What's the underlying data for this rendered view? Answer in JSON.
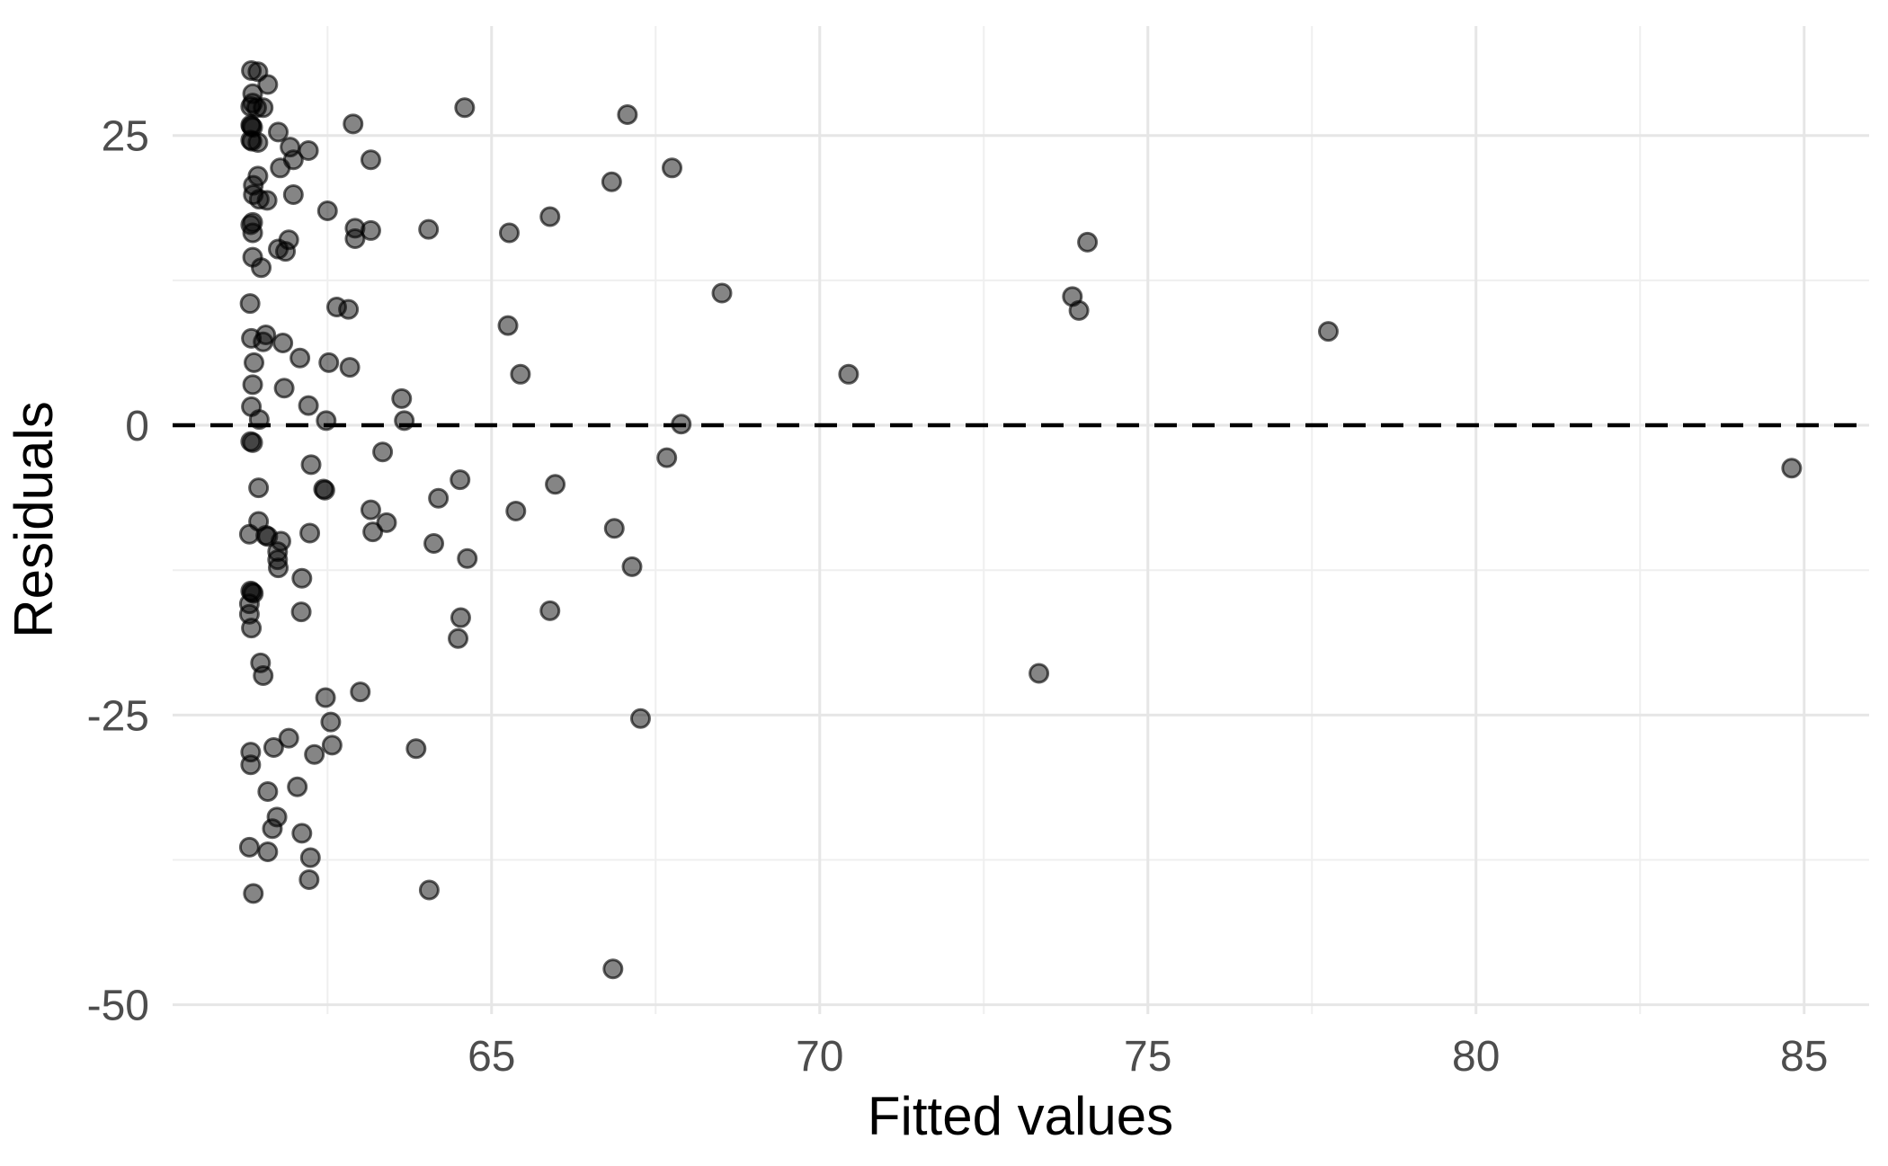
{
  "chart_data": {
    "type": "scatter",
    "title": "",
    "xlabel": "Fitted values",
    "ylabel": "Residuals",
    "x_ticks": [
      65,
      70,
      75,
      80,
      85
    ],
    "x_tick_labels": [
      "65",
      "70",
      "75",
      "80",
      "85"
    ],
    "x_minor_ticks": [
      62.5,
      67.5,
      72.5,
      77.5,
      82.5
    ],
    "y_ticks": [
      25,
      0,
      -25,
      -50
    ],
    "y_tick_labels": [
      "25",
      "0",
      "-25",
      "-50"
    ],
    "y_minor_ticks": [
      12.5,
      -12.5,
      -37.5
    ],
    "xlim": [
      60.14,
      85.99
    ],
    "ylim": [
      -50.8,
      34.44
    ],
    "grid": {
      "major": true,
      "minor": true
    },
    "legend_position": "none",
    "zero_line": {
      "y": 0,
      "style": "dashed",
      "dash": [
        25,
        17
      ]
    },
    "points": [
      [
        61.34,
        30.6
      ],
      [
        61.44,
        30.5
      ],
      [
        61.59,
        29.4
      ],
      [
        61.36,
        28.6
      ],
      [
        61.36,
        27.8
      ],
      [
        61.33,
        27.5
      ],
      [
        61.42,
        27.4
      ],
      [
        61.52,
        27.4
      ],
      [
        61.33,
        25.9
      ],
      [
        61.34,
        25.8
      ],
      [
        61.36,
        25.7
      ],
      [
        61.33,
        24.6
      ],
      [
        61.35,
        24.5
      ],
      [
        61.44,
        24.4
      ],
      [
        61.75,
        25.3
      ],
      [
        62.89,
        26.0
      ],
      [
        64.59,
        27.4
      ],
      [
        67.07,
        26.8
      ],
      [
        61.93,
        24.0
      ],
      [
        62.21,
        23.7
      ],
      [
        61.98,
        22.9
      ],
      [
        61.78,
        22.2
      ],
      [
        63.16,
        22.9
      ],
      [
        67.75,
        22.2
      ],
      [
        66.83,
        21.0
      ],
      [
        61.44,
        21.5
      ],
      [
        61.37,
        20.7
      ],
      [
        61.37,
        19.9
      ],
      [
        61.46,
        19.5
      ],
      [
        61.58,
        19.4
      ],
      [
        61.98,
        19.9
      ],
      [
        62.5,
        18.5
      ],
      [
        65.89,
        18.0
      ],
      [
        61.36,
        17.5
      ],
      [
        61.33,
        17.3
      ],
      [
        61.36,
        16.6
      ],
      [
        65.27,
        16.6
      ],
      [
        61.91,
        16.0
      ],
      [
        61.75,
        15.2
      ],
      [
        61.86,
        15.0
      ],
      [
        62.92,
        17.0
      ],
      [
        62.92,
        16.1
      ],
      [
        63.16,
        16.8
      ],
      [
        64.04,
        16.9
      ],
      [
        74.08,
        15.8
      ],
      [
        61.36,
        14.5
      ],
      [
        61.49,
        13.6
      ],
      [
        73.85,
        11.1
      ],
      [
        73.95,
        9.9
      ],
      [
        68.51,
        11.4
      ],
      [
        61.32,
        10.5
      ],
      [
        62.64,
        10.2
      ],
      [
        62.82,
        10.0
      ],
      [
        61.56,
        7.8
      ],
      [
        61.34,
        7.5
      ],
      [
        61.52,
        7.2
      ],
      [
        61.82,
        7.1
      ],
      [
        77.75,
        8.1
      ],
      [
        65.25,
        8.6
      ],
      [
        62.08,
        5.8
      ],
      [
        61.38,
        5.4
      ],
      [
        62.52,
        5.4
      ],
      [
        62.84,
        5.0
      ],
      [
        70.44,
        4.4
      ],
      [
        65.44,
        4.4
      ],
      [
        61.36,
        3.5
      ],
      [
        61.84,
        3.2
      ],
      [
        63.63,
        2.3
      ],
      [
        61.34,
        1.6
      ],
      [
        62.21,
        1.7
      ],
      [
        61.46,
        0.5
      ],
      [
        62.48,
        0.4
      ],
      [
        63.67,
        0.4
      ],
      [
        67.89,
        0.1
      ],
      [
        61.33,
        -1.4
      ],
      [
        61.36,
        -1.5
      ],
      [
        63.34,
        -2.3
      ],
      [
        62.25,
        -3.4
      ],
      [
        84.81,
        -3.7
      ],
      [
        61.45,
        -5.4
      ],
      [
        62.44,
        -5.5
      ],
      [
        62.46,
        -5.6
      ],
      [
        64.52,
        -4.7
      ],
      [
        67.67,
        -2.8
      ],
      [
        65.97,
        -5.1
      ],
      [
        64.19,
        -6.3
      ],
      [
        63.16,
        -7.3
      ],
      [
        65.37,
        -7.4
      ],
      [
        66.87,
        -8.9
      ],
      [
        61.45,
        -8.3
      ],
      [
        61.31,
        -9.4
      ],
      [
        61.59,
        -9.6
      ],
      [
        61.56,
        -9.5
      ],
      [
        62.23,
        -9.3
      ],
      [
        61.79,
        -10.0
      ],
      [
        63.4,
        -8.4
      ],
      [
        63.19,
        -9.2
      ],
      [
        64.12,
        -10.2
      ],
      [
        61.74,
        -10.9
      ],
      [
        61.74,
        -11.6
      ],
      [
        64.63,
        -11.5
      ],
      [
        67.14,
        -12.2
      ],
      [
        61.75,
        -12.3
      ],
      [
        62.11,
        -13.2
      ],
      [
        61.35,
        -14.4
      ],
      [
        61.33,
        -14.3
      ],
      [
        61.37,
        -14.5
      ],
      [
        61.31,
        -15.4
      ],
      [
        61.31,
        -16.3
      ],
      [
        61.34,
        -17.5
      ],
      [
        62.1,
        -16.1
      ],
      [
        65.89,
        -16.0
      ],
      [
        64.53,
        -16.6
      ],
      [
        64.49,
        -18.4
      ],
      [
        61.48,
        -20.5
      ],
      [
        61.52,
        -21.6
      ],
      [
        73.34,
        -21.4
      ],
      [
        62.47,
        -23.5
      ],
      [
        63.0,
        -23.0
      ],
      [
        62.55,
        -25.6
      ],
      [
        67.27,
        -25.3
      ],
      [
        62.57,
        -27.6
      ],
      [
        61.91,
        -27.0
      ],
      [
        61.68,
        -27.8
      ],
      [
        61.33,
        -28.2
      ],
      [
        61.33,
        -29.3
      ],
      [
        62.3,
        -28.4
      ],
      [
        63.85,
        -27.9
      ],
      [
        61.59,
        -31.6
      ],
      [
        62.04,
        -31.2
      ],
      [
        61.73,
        -33.8
      ],
      [
        61.66,
        -34.8
      ],
      [
        62.11,
        -35.2
      ],
      [
        61.31,
        -36.4
      ],
      [
        61.59,
        -36.8
      ],
      [
        62.24,
        -37.3
      ],
      [
        62.22,
        -39.2
      ],
      [
        61.37,
        -40.4
      ],
      [
        64.05,
        -40.1
      ],
      [
        66.85,
        -46.9
      ]
    ]
  },
  "colors": {
    "background": "#ffffff",
    "grid_major": "#e6e6e6",
    "grid_minor": "#efefef",
    "tick_label": "#4d4d4d",
    "axis_title": "#000000",
    "zero_line": "#000000",
    "point_fill": "rgba(0,0,0,0.48)",
    "point_stroke": "rgba(0,0,0,0.62)"
  }
}
